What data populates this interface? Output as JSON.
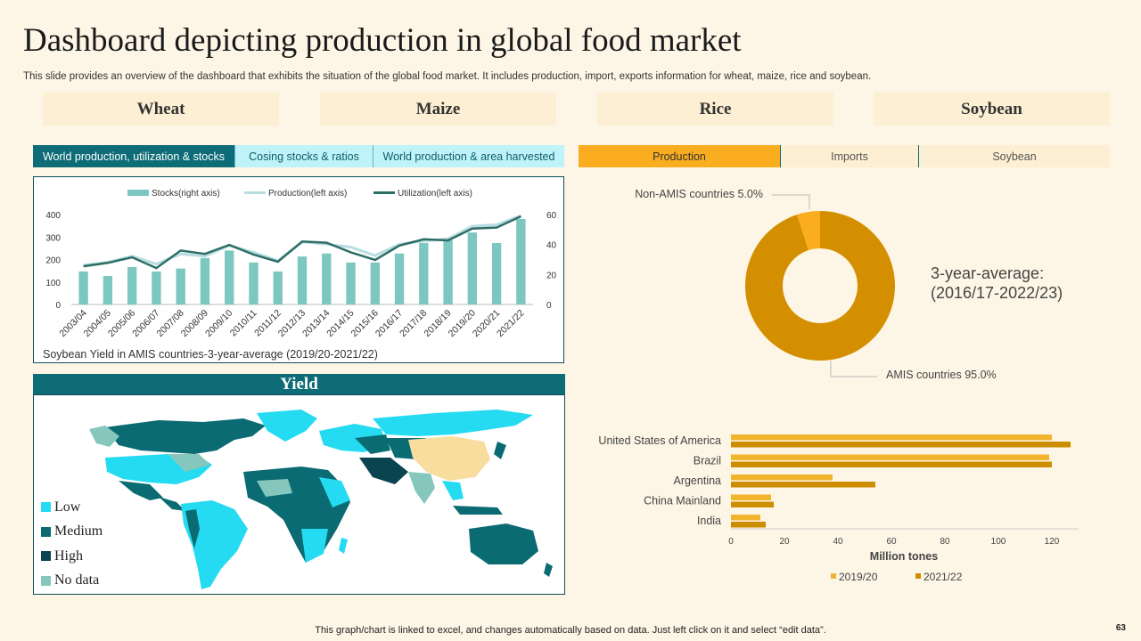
{
  "page": {
    "title": "Dashboard depicting production in global food market",
    "subtitle": "This slide provides an overview of the dashboard that exhibits the situation of the global food market. It includes production, import, exports information for wheat, maize, rice and soybean.",
    "footer": "This graph/chart is linked to excel,  and changes automatically based on data. Just left click on it and select “edit data”.",
    "page_number": "63"
  },
  "crops": [
    "Wheat",
    "Maize",
    "Rice",
    "Soybean"
  ],
  "left_tabs": [
    "World production, utilization & stocks",
    "Cosing stocks & ratios",
    "World production & area harvested"
  ],
  "right_tabs": [
    "Production",
    "Imports",
    "Soybean"
  ],
  "colors": {
    "teal_dark": "#0e6c77",
    "bar_teal": "#7cc7c0",
    "line_light": "#b8dde1",
    "line_dark": "#2e6e66",
    "pie_main": "#d48f00",
    "pie_small": "#f9ad1f",
    "bar_2019": "#f3b42d",
    "bar_2021": "#cc8d00",
    "map_low": "#25dbf2",
    "map_medium": "#0a6b73",
    "map_high": "#0a4450",
    "map_nodata": "#85c7bd",
    "map_china": "#f9dd9f"
  },
  "yield": {
    "title": "Yield",
    "legend": [
      {
        "label": "Low",
        "color": "#25dbf2"
      },
      {
        "label": "Medium",
        "color": "#0a6b73"
      },
      {
        "label": "High",
        "color": "#0a4450"
      },
      {
        "label": "No data",
        "color": "#85c7bd"
      }
    ]
  },
  "chart_data": [
    {
      "type": "bar",
      "title": "",
      "caption": "Soybean Yield in AMIS countries-3-year-average   (2019/20-2021/22)",
      "categories": [
        "2003/04",
        "2004/05",
        "2005/06",
        "2006/07",
        "2007/08",
        "2008/09",
        "2009/10",
        "2010/11",
        "2011/12",
        "2012/13",
        "2013/14",
        "2014/15",
        "2015/16",
        "2016/17",
        "2017/18",
        "2018/19",
        "2019/20",
        "2020/21",
        "2021/22"
      ],
      "series": [
        {
          "name": "Stocks(right axis)",
          "kind": "bar",
          "axis": "right",
          "values": [
            22,
            19,
            25,
            22,
            24,
            31,
            36,
            28,
            22,
            32,
            34,
            28,
            28,
            34,
            41,
            43,
            48,
            41,
            57
          ]
        },
        {
          "name": "Production(left axis)",
          "kind": "line",
          "axis": "left",
          "values": [
            175,
            188,
            215,
            180,
            225,
            215,
            262,
            232,
            195,
            278,
            268,
            255,
            218,
            268,
            282,
            292,
            348,
            355,
            395
          ]
        },
        {
          "name": "Utilization(left axis)",
          "kind": "line",
          "axis": "left",
          "values": [
            170,
            185,
            210,
            162,
            240,
            225,
            265,
            222,
            190,
            280,
            275,
            232,
            198,
            262,
            290,
            285,
            338,
            342,
            392
          ]
        }
      ],
      "left_axis": {
        "ticks": [
          0,
          100,
          200,
          300,
          400
        ],
        "ylim": [
          0,
          400
        ]
      },
      "right_axis": {
        "ticks": [
          0,
          20,
          40,
          60
        ],
        "ylim": [
          0,
          60
        ]
      },
      "legend_position": "top",
      "grid": false
    },
    {
      "type": "pie",
      "donut": true,
      "title": "",
      "annotation": [
        "3-year-average:",
        "(2016/17-2022/23)"
      ],
      "slices": [
        {
          "label": "AMIS countries",
          "value": 95.0,
          "display": "AMIS countries 95.0%"
        },
        {
          "label": "Non-AMIS countries",
          "value": 5.0,
          "display": "Non-AMIS countries 5.0%"
        }
      ]
    },
    {
      "type": "bar",
      "orientation": "horizontal",
      "title": "",
      "xlabel": "Million tones",
      "categories": [
        "United States of America",
        "Brazil",
        "Argentina",
        "China Mainland",
        "India"
      ],
      "series": [
        {
          "name": "2019/20",
          "values": [
            120,
            119,
            38,
            15,
            11
          ]
        },
        {
          "name": "2021/22",
          "values": [
            127,
            120,
            54,
            16,
            13
          ]
        }
      ],
      "xlim": [
        0,
        130
      ],
      "xticks": [
        0,
        20,
        40,
        60,
        80,
        100,
        120
      ],
      "legend_position": "bottom",
      "grid": false
    }
  ]
}
